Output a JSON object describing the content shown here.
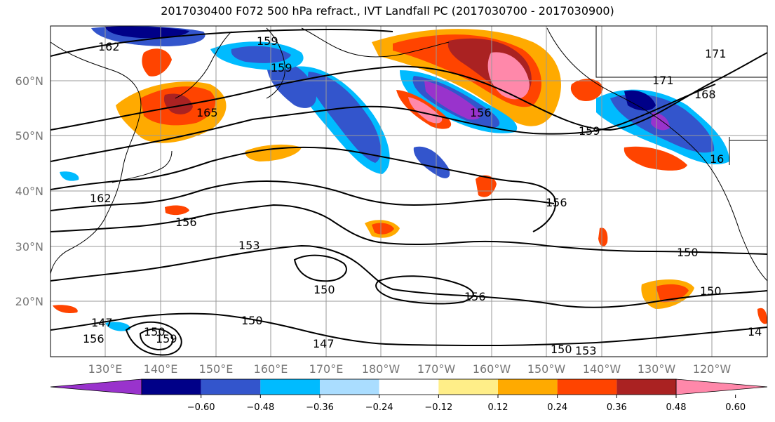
{
  "title": "2017030400 F072 500 hPa refract., IVT Landfall PC (2017030700 - 2017030900)",
  "lat_labels": [
    "60°N",
    "50°N",
    "40°N",
    "30°N",
    "20°N"
  ],
  "lon_labels": [
    "130°E",
    "140°E",
    "150°E",
    "160°E",
    "170°E",
    "180°W",
    "170°W",
    "160°W",
    "150°W",
    "140°W",
    "130°W",
    "120°W"
  ],
  "contour_labels": [
    "162",
    "159",
    "159",
    "165",
    "156",
    "159",
    "171",
    "171",
    "168",
    "16",
    "162",
    "156",
    "156",
    "153",
    "150",
    "150",
    "150",
    "147",
    "150",
    "147",
    "150",
    "153",
    "156",
    "150",
    "156",
    "159",
    "14"
  ],
  "colorbar": {
    "ticks": [
      "−0.60",
      "−0.48",
      "−0.36",
      "−0.24",
      "−0.12",
      "0.12",
      "0.24",
      "0.36",
      "0.48",
      "0.60"
    ],
    "colors": [
      "#9933cc",
      "#000088",
      "#3355cc",
      "#00bbff",
      "#aaddff",
      "#ffffff",
      "#ffee88",
      "#ffaa00",
      "#ff4400",
      "#aa2222",
      "#ff88aa"
    ]
  }
}
